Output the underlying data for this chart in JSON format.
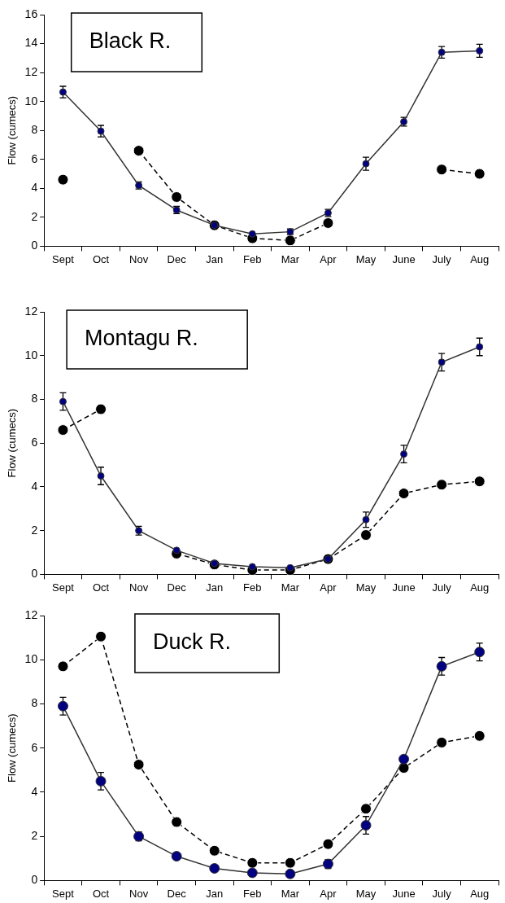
{
  "chart_data": [
    {
      "type": "line",
      "title": "Black R.",
      "ylabel": "Flow (cumecs)",
      "categories": [
        "Sept",
        "Oct",
        "Nov",
        "Dec",
        "Jan",
        "Feb",
        "Mar",
        "Apr",
        "May",
        "June",
        "July",
        "Aug"
      ],
      "ylim": [
        0,
        16
      ],
      "yticks": [
        0,
        2,
        4,
        6,
        8,
        10,
        12,
        14,
        16
      ],
      "series": [
        {
          "color": "#000080",
          "line_style": "solid",
          "marker": "circle",
          "values": [
            10.65,
            7.95,
            4.2,
            2.5,
            1.45,
            0.85,
            1.0,
            2.3,
            5.7,
            8.6,
            13.4,
            13.5
          ],
          "errors": [
            0.4,
            0.4,
            0.25,
            0.25,
            null,
            null,
            0.2,
            0.25,
            0.45,
            0.3,
            0.4,
            0.45
          ]
        },
        {
          "color": "#000000",
          "line_style": "dashed",
          "marker": "circle",
          "values": [
            4.6,
            null,
            6.6,
            3.4,
            1.45,
            0.55,
            0.4,
            1.6,
            null,
            null,
            5.3,
            5.0
          ]
        }
      ]
    },
    {
      "type": "line",
      "title": "Montagu R.",
      "ylabel": "Flow (cumecs)",
      "categories": [
        "Sept",
        "Oct",
        "Nov",
        "Dec",
        "Jan",
        "Feb",
        "Mar",
        "Apr",
        "May",
        "June",
        "July",
        "Aug"
      ],
      "ylim": [
        0,
        12
      ],
      "yticks": [
        0,
        2,
        4,
        6,
        8,
        10,
        12
      ],
      "series": [
        {
          "color": "#000080",
          "line_style": "solid",
          "marker": "circle",
          "values": [
            7.9,
            4.5,
            2.0,
            1.1,
            0.5,
            0.35,
            0.3,
            0.7,
            2.5,
            5.5,
            9.7,
            10.4
          ],
          "errors": [
            0.4,
            0.4,
            0.2,
            null,
            null,
            null,
            null,
            null,
            0.35,
            0.4,
            0.4,
            0.4
          ]
        },
        {
          "color": "#000000",
          "line_style": "dashed",
          "marker": "circle",
          "values": [
            6.6,
            7.55,
            null,
            0.95,
            0.45,
            0.2,
            0.2,
            0.7,
            1.8,
            3.7,
            4.1,
            4.25
          ]
        }
      ]
    },
    {
      "type": "line",
      "title": "Duck R.",
      "ylabel": "Flow (cumecs)",
      "categories": [
        "Sept",
        "Oct",
        "Nov",
        "Dec",
        "Jan",
        "Feb",
        "Mar",
        "Apr",
        "May",
        "June",
        "July",
        "Aug"
      ],
      "ylim": [
        0,
        12
      ],
      "yticks": [
        0,
        2,
        4,
        6,
        8,
        10,
        12
      ],
      "series": [
        {
          "color": "#000080",
          "line_style": "solid",
          "marker": "circle",
          "values": [
            7.9,
            4.5,
            2.0,
            1.1,
            0.55,
            0.35,
            0.3,
            0.75,
            2.5,
            5.5,
            9.7,
            10.35
          ],
          "errors": [
            0.4,
            0.4,
            0.2,
            null,
            null,
            null,
            null,
            0.2,
            0.4,
            null,
            0.4,
            0.4
          ]
        },
        {
          "color": "#000000",
          "line_style": "dashed",
          "marker": "circle",
          "values": [
            9.7,
            11.05,
            5.25,
            2.65,
            1.35,
            0.8,
            0.8,
            1.65,
            3.25,
            5.1,
            6.25,
            6.55
          ]
        }
      ]
    }
  ]
}
